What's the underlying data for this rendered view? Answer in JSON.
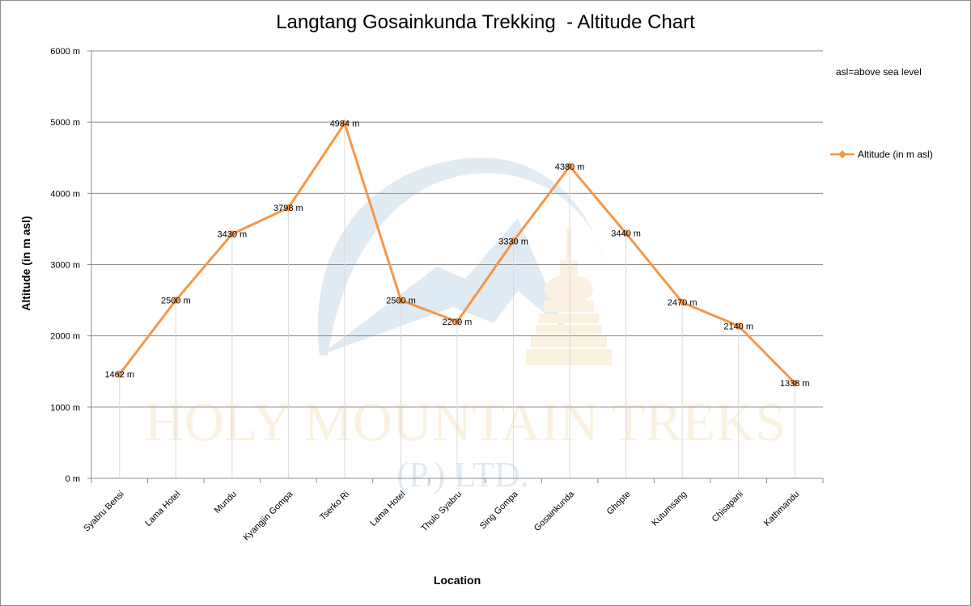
{
  "chart_data": {
    "type": "line",
    "title": "Langtang Gosainkunda Trekking  - Altitude Chart",
    "xlabel": "Location",
    "ylabel": "Altitude (in m asl)",
    "note": "asl=above sea level",
    "ylim": [
      0,
      6000
    ],
    "yticks": [
      "0 m",
      "1000 m",
      "2000 m",
      "3000 m",
      "4000 m",
      "5000 m",
      "6000 m"
    ],
    "ytick_values": [
      0,
      1000,
      2000,
      3000,
      4000,
      5000,
      6000
    ],
    "grid": true,
    "legend_position": "right",
    "categories": [
      "Syabru Bensi",
      "Lama Hotel",
      "Mundu",
      "Kyangjin Gompa",
      "Tserko Ri",
      "Lama Hotel",
      "Thulo Syabru",
      "Sing Gompa",
      "Gosainkunda",
      "Ghopte",
      "Kutumsang",
      "Chisapani",
      "Kathmandu"
    ],
    "series": [
      {
        "name": "Altitude (in  m asl)",
        "color": "#f79646",
        "values": [
          1462,
          2500,
          3430,
          3798,
          4984,
          2500,
          2200,
          3330,
          4380,
          3440,
          2470,
          2140,
          1338
        ],
        "labels": [
          "1462 m",
          "2500 m",
          "3430 m",
          "3798 m",
          "4984 m",
          "2500 m",
          "2200 m",
          "3330 m",
          "4380 m",
          "3440 m",
          "2470 m",
          "2140 m",
          "1338 m"
        ]
      }
    ]
  },
  "watermark": {
    "line1": "HOLY MOUNTAIN TREKS",
    "line2": "(P.) LTD.",
    "color_blue": "#5b8fb9",
    "color_gold": "#e8b65a"
  }
}
